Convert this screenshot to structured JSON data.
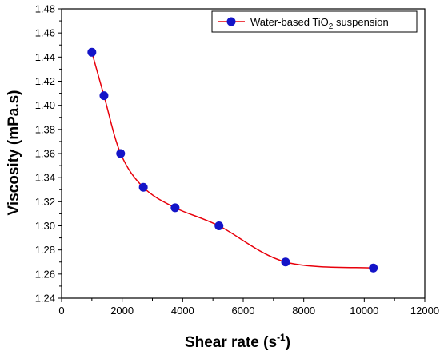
{
  "chart_data": {
    "type": "scatter",
    "xlabel": "Shear rate (s",
    "xlabel_sup": "-1",
    "xlabel_end": ")",
    "ylabel": "Viscosity (mPa.s)",
    "xlim": [
      0,
      12000
    ],
    "ylim": [
      1.24,
      1.48
    ],
    "x_ticks": [
      "0",
      "2000",
      "4000",
      "6000",
      "8000",
      "10000",
      "12000"
    ],
    "y_ticks": [
      "1.24",
      "1.26",
      "1.28",
      "1.30",
      "1.32",
      "1.34",
      "1.36",
      "1.38",
      "1.40",
      "1.42",
      "1.44",
      "1.46",
      "1.48"
    ],
    "grid": false,
    "legend_position": "top-right",
    "series": [
      {
        "name": "Water-based TiO2 suspension",
        "name_main": "Water-based TiO",
        "name_sub": "2",
        "name_end": " suspension",
        "marker_color": "#1414c8",
        "line_color": "#e8000b",
        "x": [
          1000,
          1400,
          1950,
          2700,
          3750,
          5200,
          7400,
          10300
        ],
        "y": [
          1.444,
          1.408,
          1.36,
          1.332,
          1.315,
          1.3,
          1.27,
          1.265
        ]
      }
    ]
  }
}
